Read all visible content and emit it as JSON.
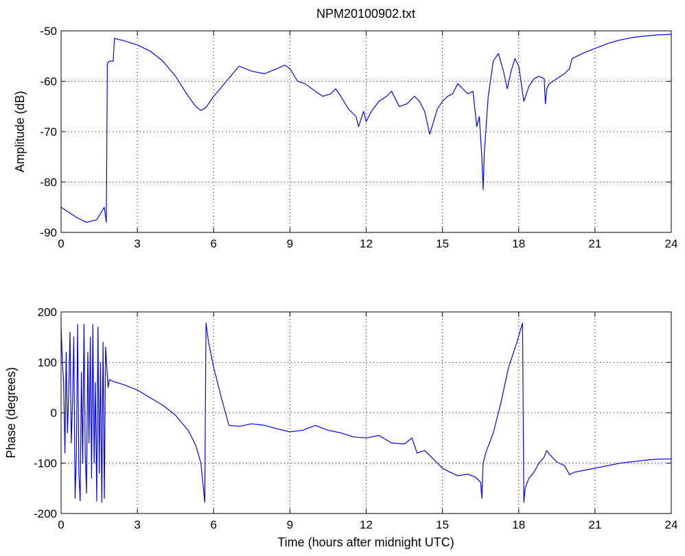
{
  "figure": {
    "title": "NPM20100902.txt",
    "xlabel": "Time (hours after midnight UTC)"
  },
  "colors": {
    "line": "#0000ff",
    "axes": "#000000",
    "grid": "#000000",
    "background": "#ffffff"
  },
  "chart_data": [
    {
      "type": "line",
      "title": "NPM20100902.txt",
      "xlabel": "",
      "ylabel": "Amplitude (dB)",
      "xlim": [
        0,
        24
      ],
      "ylim": [
        -90,
        -50
      ],
      "xticks": [
        0,
        3,
        6,
        9,
        12,
        15,
        18,
        21,
        24
      ],
      "yticks": [
        -90,
        -80,
        -70,
        -60,
        -50
      ],
      "grid": true,
      "series": [
        {
          "x": [
            0,
            0.3,
            0.6,
            1.0,
            1.4,
            1.7,
            1.78,
            1.82,
            1.9,
            2.05,
            2.1,
            2.5,
            3.0,
            3.5,
            4.0,
            4.5,
            5.0,
            5.3,
            5.5,
            5.7,
            6.0,
            6.5,
            7.0,
            7.5,
            8.0,
            8.5,
            8.8,
            9.0,
            9.3,
            9.6,
            10.0,
            10.3,
            10.6,
            10.8,
            11.0,
            11.3,
            11.6,
            11.7,
            11.9,
            12.0,
            12.2,
            12.5,
            12.8,
            13.0,
            13.3,
            13.6,
            13.9,
            14.1,
            14.3,
            14.5,
            14.8,
            15.0,
            15.2,
            15.4,
            15.6,
            15.8,
            16.0,
            16.2,
            16.35,
            16.45,
            16.55,
            16.6,
            16.65,
            16.8,
            17.0,
            17.2,
            17.4,
            17.55,
            17.7,
            17.85,
            18.0,
            18.1,
            18.2,
            18.4,
            18.6,
            18.8,
            19.0,
            19.05,
            19.1,
            19.2,
            19.5,
            19.8,
            20.0,
            20.1,
            20.5,
            21.0,
            21.5,
            22.0,
            22.5,
            23.0,
            23.5,
            24.0
          ],
          "y": [
            -85,
            -86,
            -87,
            -88,
            -87.5,
            -85,
            -88,
            -56.5,
            -56,
            -56,
            -51.5,
            -52,
            -52.8,
            -54,
            -56,
            -59,
            -63,
            -65,
            -65.8,
            -65.2,
            -63,
            -60,
            -57,
            -58,
            -58.5,
            -57.5,
            -56.8,
            -57.5,
            -60,
            -60.5,
            -62,
            -63,
            -62.5,
            -61.5,
            -63,
            -65.5,
            -67,
            -69,
            -66,
            -68,
            -66,
            -64,
            -63,
            -62,
            -65,
            -64.5,
            -63,
            -64,
            -66,
            -70.5,
            -65.5,
            -64,
            -63,
            -62.5,
            -60.5,
            -61.5,
            -62.5,
            -62,
            -69,
            -67,
            -75,
            -81.5,
            -74,
            -63,
            -56,
            -54.5,
            -58,
            -61.5,
            -58,
            -55.5,
            -57,
            -60.5,
            -64,
            -61,
            -59.5,
            -59,
            -59.5,
            -64.5,
            -61.5,
            -60.5,
            -59.5,
            -58.5,
            -57.5,
            -55.5,
            -54.5,
            -53.5,
            -52.5,
            -51.8,
            -51.3,
            -51,
            -50.8,
            -50.7
          ]
        }
      ]
    },
    {
      "type": "line",
      "title": "",
      "xlabel": "Time (hours after midnight UTC)",
      "ylabel": "Phase (degrees)",
      "xlim": [
        0,
        24
      ],
      "ylim": [
        -200,
        200
      ],
      "xticks": [
        0,
        3,
        6,
        9,
        12,
        15,
        18,
        21,
        24
      ],
      "yticks": [
        -200,
        -100,
        0,
        100,
        200
      ],
      "grid": true,
      "series": [
        {
          "x": [
            0,
            0.05,
            0.1,
            0.15,
            0.2,
            0.25,
            0.3,
            0.35,
            0.4,
            0.45,
            0.5,
            0.55,
            0.6,
            0.65,
            0.7,
            0.75,
            0.8,
            0.85,
            0.9,
            0.95,
            1.0,
            1.05,
            1.1,
            1.15,
            1.2,
            1.25,
            1.3,
            1.35,
            1.4,
            1.45,
            1.5,
            1.55,
            1.6,
            1.65,
            1.7,
            1.75,
            1.8,
            1.85,
            1.9,
            2.0,
            2.5,
            3.0,
            3.5,
            4.0,
            4.5,
            5.0,
            5.3,
            5.5,
            5.65,
            5.7,
            5.8,
            6.0,
            6.3,
            6.6,
            7.0,
            7.5,
            8.0,
            8.5,
            9.0,
            9.5,
            10.0,
            10.5,
            11.0,
            11.5,
            12.0,
            12.5,
            13.0,
            13.5,
            13.8,
            14.0,
            14.3,
            14.6,
            15.0,
            15.3,
            15.6,
            16.0,
            16.3,
            16.5,
            16.55,
            16.6,
            16.7,
            17.0,
            17.3,
            17.6,
            17.9,
            18.15,
            18.2,
            18.25,
            18.4,
            18.6,
            18.8,
            19.0,
            19.1,
            19.2,
            19.5,
            19.8,
            20.0,
            20.2,
            20.5,
            21.0,
            21.5,
            22.0,
            22.5,
            23.0,
            23.5,
            24.0
          ],
          "y": [
            170,
            100,
            60,
            -80,
            120,
            -40,
            40,
            160,
            -60,
            20,
            150,
            -170,
            -90,
            175,
            -120,
            -175,
            80,
            -100,
            175,
            -80,
            -160,
            120,
            -60,
            150,
            -130,
            175,
            -100,
            60,
            -175,
            170,
            -120,
            100,
            -178,
            140,
            -170,
            130,
            90,
            50,
            66,
            63,
            55,
            45,
            30,
            15,
            -5,
            -35,
            -65,
            -100,
            -178,
            178,
            140,
            90,
            30,
            -25,
            -27,
            -22,
            -25,
            -32,
            -38,
            -35,
            -25,
            -35,
            -40,
            -48,
            -50,
            -45,
            -60,
            -62,
            -50,
            -80,
            -75,
            -90,
            -110,
            -118,
            -125,
            -122,
            -128,
            -138,
            -170,
            -100,
            -80,
            -40,
            20,
            90,
            135,
            178,
            -178,
            -150,
            -130,
            -118,
            -100,
            -88,
            -75,
            -82,
            -98,
            -105,
            -123,
            -118,
            -115,
            -110,
            -105,
            -100,
            -97,
            -94,
            -92,
            -92
          ]
        }
      ]
    }
  ]
}
